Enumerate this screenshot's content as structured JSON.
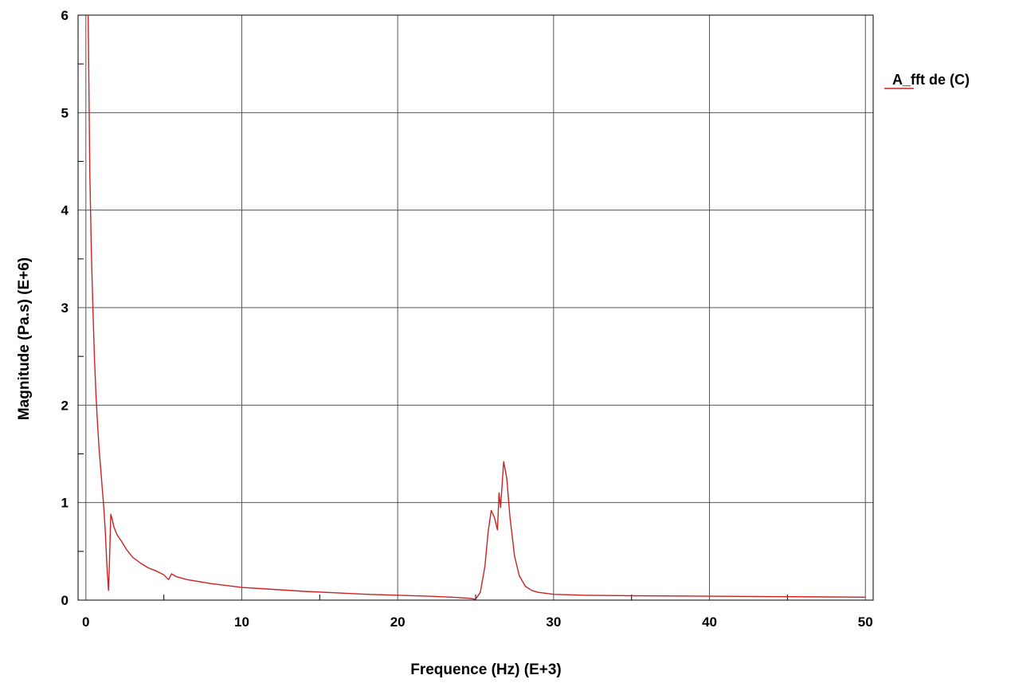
{
  "chart_data": {
    "type": "line",
    "title": "",
    "xlabel": "Frequence (Hz) (E+3)",
    "ylabel": "Magnitude (Pa.s) (E+6)",
    "xlim": [
      -0.5,
      50.5
    ],
    "ylim": [
      0,
      6
    ],
    "xticks": [
      0,
      10,
      20,
      30,
      40,
      50
    ],
    "yticks": [
      0,
      1,
      2,
      3,
      4,
      5,
      6
    ],
    "grid": true,
    "legend_position": "top-right",
    "series": [
      {
        "name": "A_fft de (C)",
        "color": "#cc2222",
        "x": [
          0.15,
          0.25,
          0.35,
          0.45,
          0.55,
          0.65,
          0.75,
          0.85,
          0.95,
          1.05,
          1.15,
          1.25,
          1.35,
          1.45,
          1.5,
          1.55,
          1.6,
          1.7,
          1.8,
          2.0,
          2.3,
          2.6,
          3.0,
          3.5,
          4.0,
          4.5,
          5.0,
          5.3,
          5.5,
          5.8,
          6.5,
          8.0,
          10.0,
          12.0,
          14.0,
          16.0,
          18.0,
          20.0,
          22.0,
          23.5,
          24.5,
          25.0,
          25.3,
          25.6,
          25.8,
          26.0,
          26.2,
          26.4,
          26.5,
          26.6,
          26.8,
          27.0,
          27.2,
          27.5,
          27.8,
          28.2,
          28.6,
          29.0,
          30.0,
          32.0,
          35.0,
          40.0,
          45.0,
          50.0
        ],
        "y": [
          6.0,
          4.4,
          3.6,
          3.0,
          2.5,
          2.1,
          1.8,
          1.55,
          1.35,
          1.15,
          0.95,
          0.7,
          0.35,
          0.1,
          0.3,
          0.6,
          0.88,
          0.82,
          0.75,
          0.67,
          0.6,
          0.52,
          0.44,
          0.38,
          0.33,
          0.3,
          0.26,
          0.21,
          0.27,
          0.24,
          0.21,
          0.17,
          0.13,
          0.11,
          0.09,
          0.075,
          0.06,
          0.05,
          0.04,
          0.03,
          0.02,
          0.01,
          0.08,
          0.35,
          0.7,
          0.92,
          0.85,
          0.72,
          1.1,
          0.95,
          1.42,
          1.25,
          0.85,
          0.45,
          0.25,
          0.14,
          0.1,
          0.08,
          0.06,
          0.05,
          0.045,
          0.04,
          0.035,
          0.03
        ]
      }
    ]
  }
}
